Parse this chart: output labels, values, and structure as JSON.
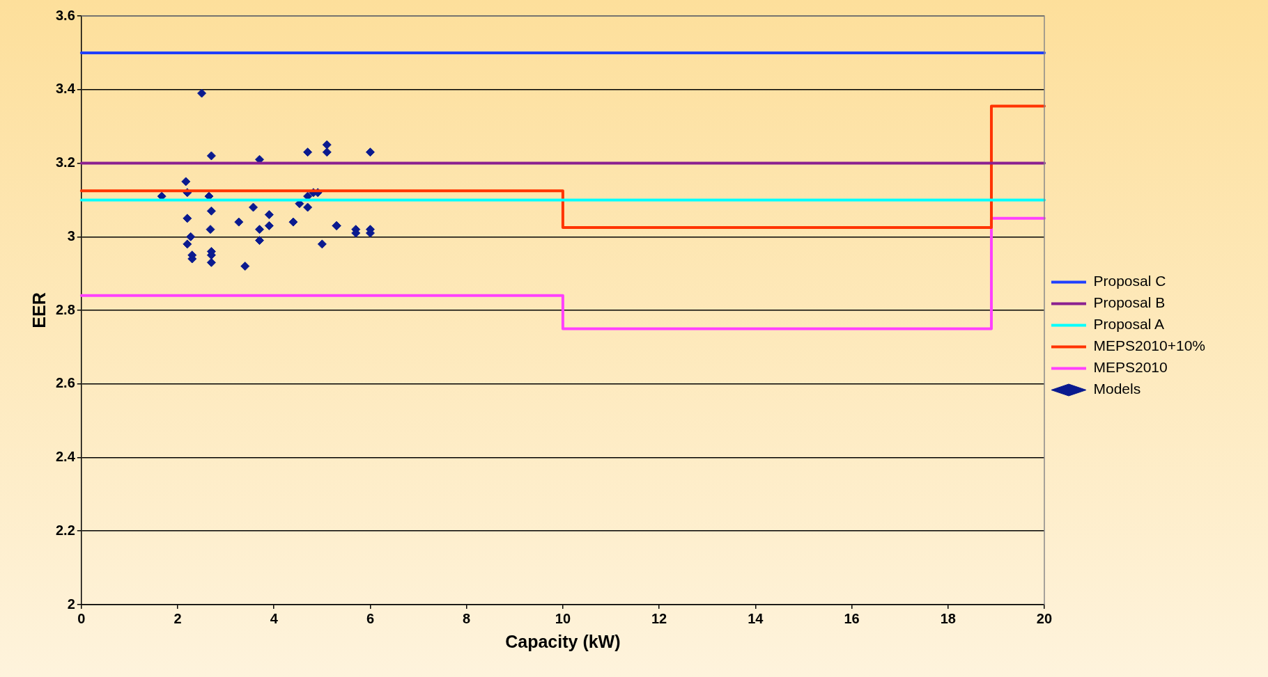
{
  "chart_data": {
    "type": "line",
    "xlabel": "Capacity (kW)",
    "ylabel": "EER",
    "xlim": [
      0,
      20
    ],
    "xticks": [
      0,
      2,
      4,
      6,
      8,
      10,
      12,
      14,
      16,
      18,
      20
    ],
    "ylim": [
      2,
      3.6
    ],
    "yticks": [
      2,
      2.2,
      2.4,
      2.6,
      2.8,
      3,
      3.2,
      3.4,
      3.6
    ],
    "grid": "y",
    "legend": "right",
    "series": [
      {
        "name": "Proposal C",
        "color": "#1f3fff",
        "type": "line",
        "x": [
          0,
          20
        ],
        "values": [
          3.5,
          3.5
        ]
      },
      {
        "name": "Proposal B",
        "color": "#8b2090",
        "type": "line",
        "x": [
          0,
          20
        ],
        "values": [
          3.2,
          3.2
        ]
      },
      {
        "name": "Proposal A",
        "color": "#00ffff",
        "type": "line",
        "x": [
          0,
          20
        ],
        "values": [
          3.1,
          3.1
        ]
      },
      {
        "name": "MEPS2010+10%",
        "color": "#ff3300",
        "type": "step",
        "x": [
          0,
          10,
          18.9,
          20
        ],
        "values": [
          3.125,
          3.025,
          3.355,
          3.355
        ]
      },
      {
        "name": "MEPS2010",
        "color": "#ff40ff",
        "type": "step",
        "x": [
          0,
          10,
          18.9,
          20
        ],
        "values": [
          2.84,
          2.75,
          3.05,
          3.05
        ]
      },
      {
        "name": "Models",
        "color": "#0a1a8f",
        "type": "scatter",
        "marker": "diamond",
        "x": [
          1.67,
          2.17,
          2.2,
          2.2,
          2.2,
          2.27,
          2.3,
          2.3,
          2.5,
          2.65,
          2.7,
          2.7,
          2.68,
          2.7,
          2.7,
          2.7,
          3.27,
          3.4,
          3.57,
          3.7,
          3.7,
          3.7,
          3.9,
          3.9,
          4.4,
          4.53,
          4.7,
          4.7,
          4.7,
          4.82,
          4.91,
          5.0,
          5.1,
          5.1,
          5.3,
          5.3,
          5.7,
          5.7,
          6.0,
          6.0,
          6.0
        ],
        "values": [
          3.11,
          3.15,
          3.12,
          3.05,
          2.98,
          3.0,
          2.95,
          2.94,
          3.39,
          3.11,
          3.22,
          3.07,
          3.02,
          2.96,
          2.95,
          2.93,
          3.04,
          2.92,
          3.08,
          3.21,
          3.02,
          2.99,
          3.06,
          3.03,
          3.04,
          3.09,
          3.23,
          3.08,
          3.11,
          3.12,
          3.12,
          2.98,
          3.25,
          3.23,
          3.03,
          3.03,
          3.02,
          3.01,
          3.23,
          3.02,
          3.01
        ]
      }
    ]
  }
}
